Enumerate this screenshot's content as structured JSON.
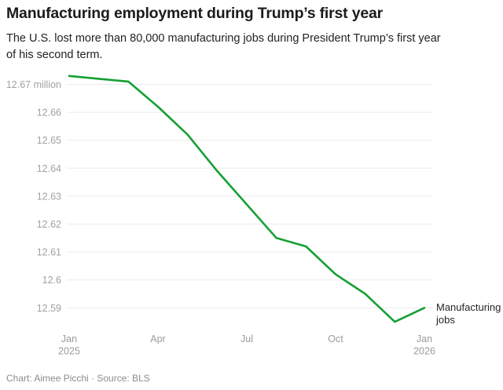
{
  "header": {
    "title": "Manufacturing employment during Trump’s first year",
    "subtitle": "The U.S. lost more than 80,000 manufacturing jobs during President Trump’s first year of his second term."
  },
  "footer": {
    "credit": "Chart: Aimee Picchi · Source: BLS"
  },
  "colors": {
    "line": "#16a034",
    "grid": "#ebebeb",
    "axis_text": "#a1a1a1",
    "title_text": "#1b1b1b",
    "body_text": "#222222"
  },
  "chart_data": {
    "type": "line",
    "title": "Manufacturing employment during Trump’s first year",
    "unit": "million jobs",
    "series_label": "Manufacturing jobs",
    "grid": true,
    "legend_position": "right-of-line-end",
    "x": [
      "Jan 2025",
      "Feb 2025",
      "Mar 2025",
      "Apr 2025",
      "May 2025",
      "Jun 2025",
      "Jul 2025",
      "Aug 2025",
      "Sep 2025",
      "Oct 2025",
      "Nov 2025",
      "Dec 2025",
      "Jan 2026"
    ],
    "values": [
      12.673,
      12.672,
      12.671,
      12.662,
      12.652,
      12.639,
      12.627,
      12.615,
      12.612,
      12.602,
      12.595,
      12.585,
      12.59
    ],
    "ylim": [
      12.585,
      12.675
    ],
    "y_ticks": [
      {
        "value": 12.67,
        "label": "12.67 million"
      },
      {
        "value": 12.66,
        "label": "12.66"
      },
      {
        "value": 12.65,
        "label": "12.65"
      },
      {
        "value": 12.64,
        "label": "12.64"
      },
      {
        "value": 12.63,
        "label": "12.63"
      },
      {
        "value": 12.62,
        "label": "12.62"
      },
      {
        "value": 12.61,
        "label": "12.61"
      },
      {
        "value": 12.6,
        "label": "12.6"
      },
      {
        "value": 12.59,
        "label": "12.59"
      }
    ],
    "x_ticks": [
      {
        "month_index": 0,
        "lines": [
          "Jan",
          "2025"
        ]
      },
      {
        "month_index": 3,
        "lines": [
          "Apr"
        ]
      },
      {
        "month_index": 6,
        "lines": [
          "Jul"
        ]
      },
      {
        "month_index": 9,
        "lines": [
          "Oct"
        ]
      },
      {
        "month_index": 12,
        "lines": [
          "Jan",
          "2026"
        ]
      }
    ]
  }
}
